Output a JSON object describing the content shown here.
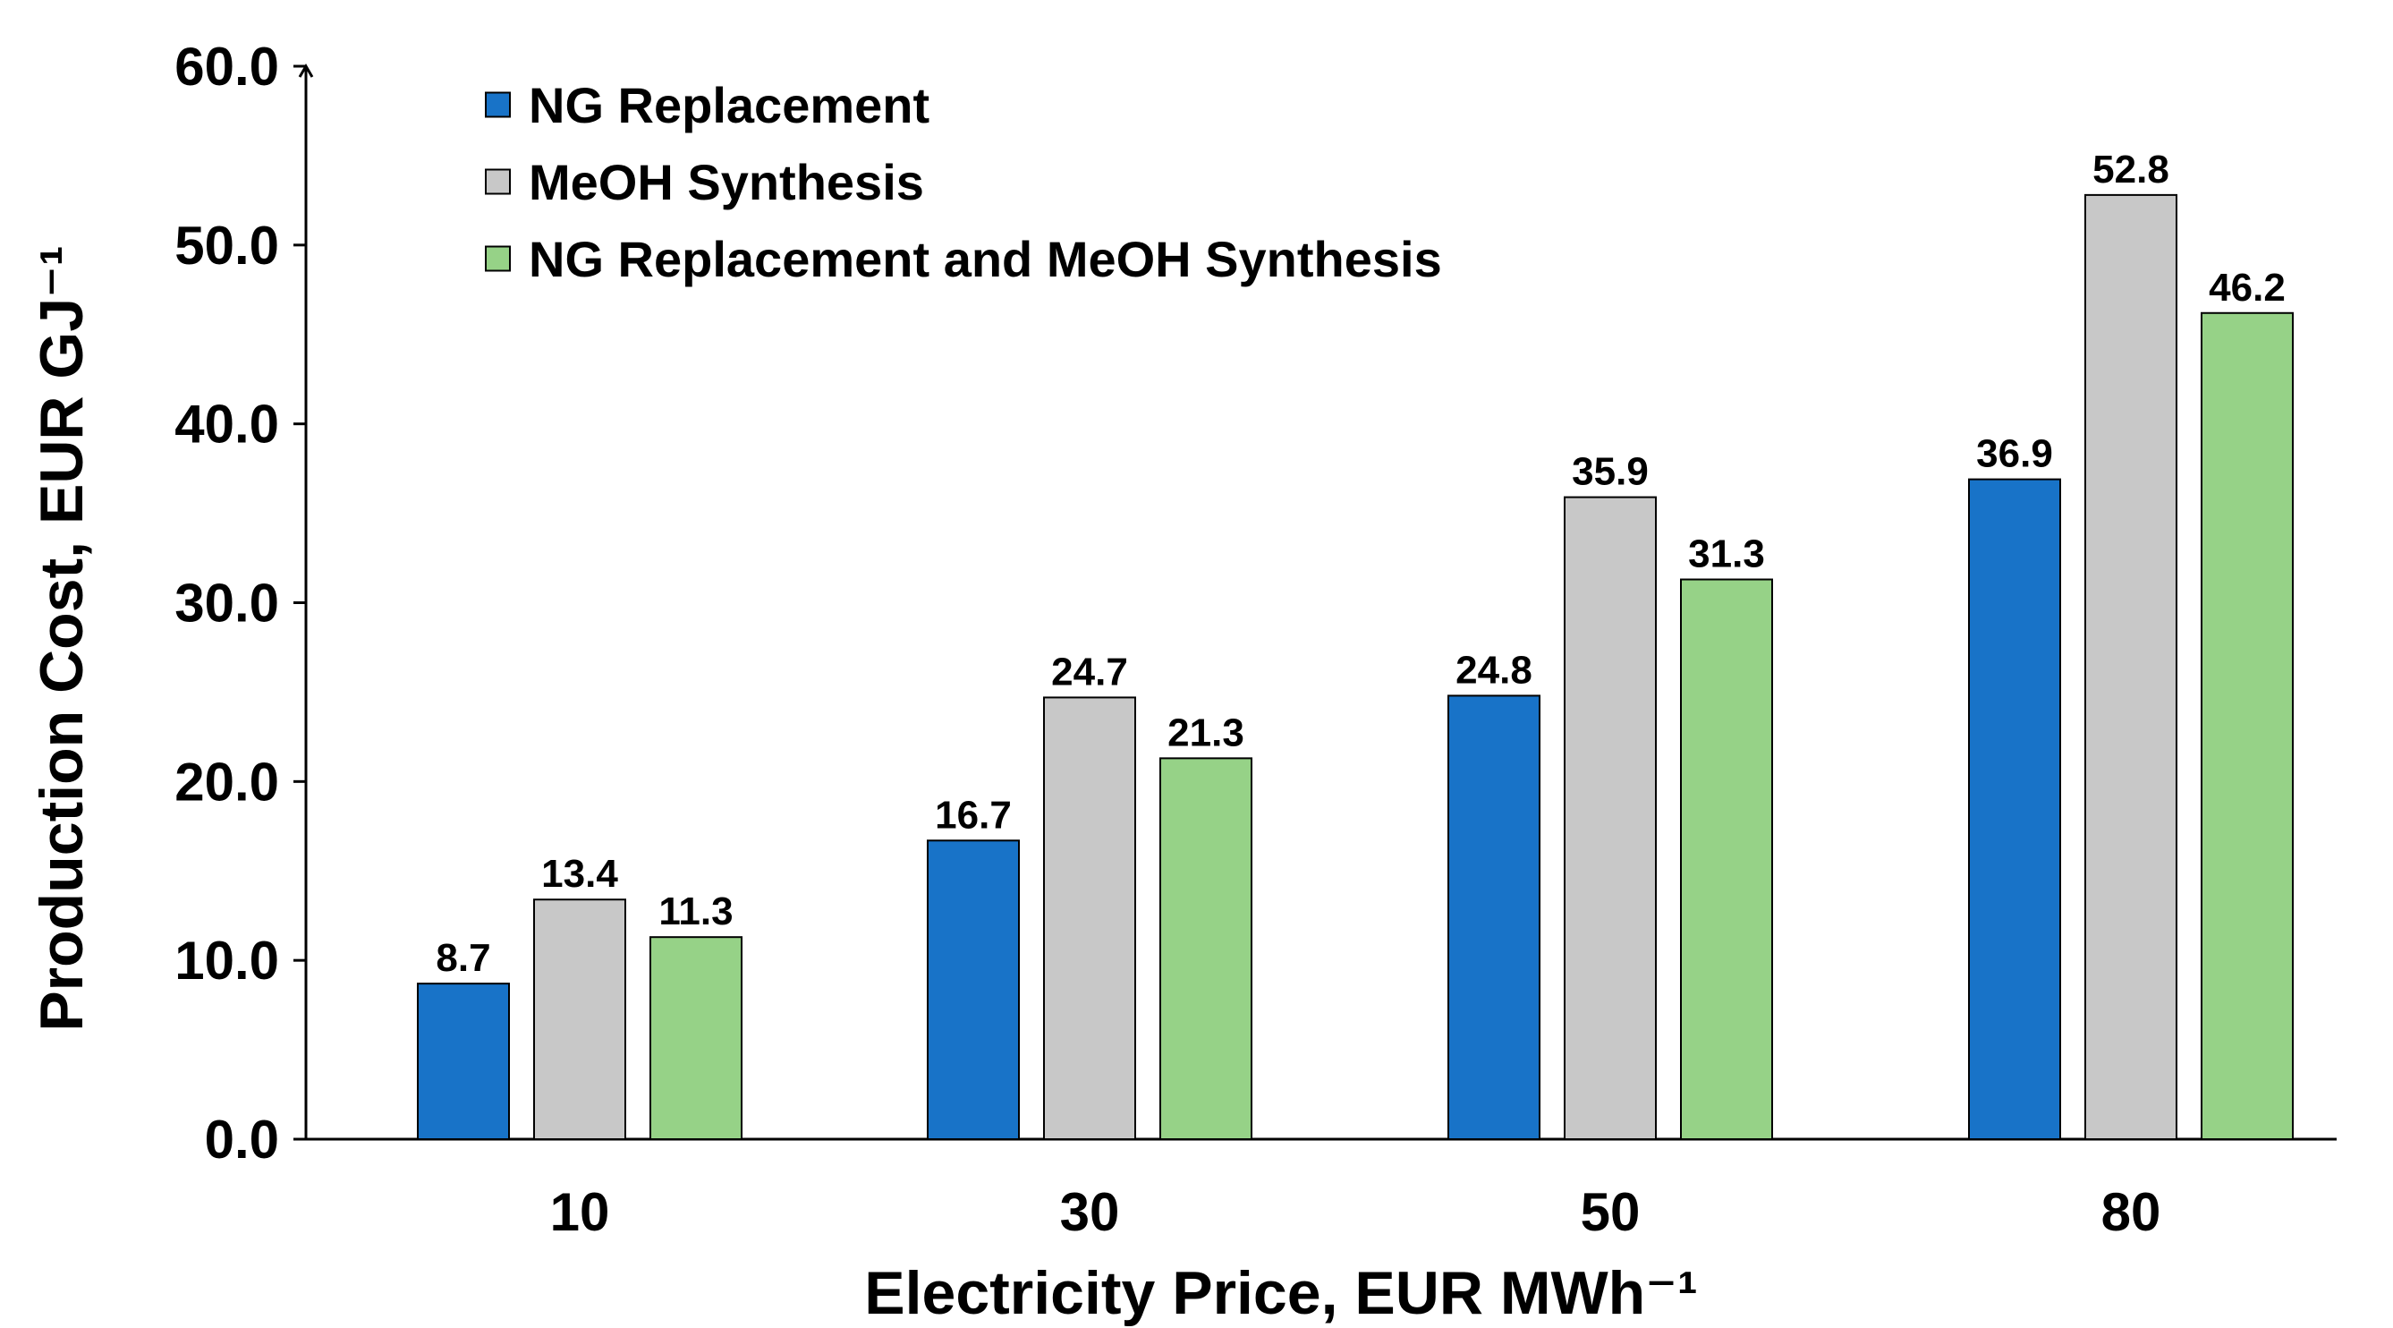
{
  "chart_data": {
    "type": "bar",
    "title": "",
    "xlabel": "Electricity Price, EUR MWh⁻¹",
    "ylabel": "Production Cost, EUR GJ⁻¹",
    "categories": [
      "10",
      "30",
      "50",
      "80"
    ],
    "ylim": [
      0,
      60
    ],
    "yticks": [
      "0.0",
      "10.0",
      "20.0",
      "30.0",
      "40.0",
      "50.0",
      "60.0"
    ],
    "ytick_values": [
      0,
      10,
      20,
      30,
      40,
      50,
      60
    ],
    "grid": false,
    "legend_position": "top-left",
    "series": [
      {
        "name": "NG Replacement",
        "color": "#1873C8",
        "values": [
          8.7,
          16.7,
          24.8,
          36.9
        ],
        "labels": [
          "8.7",
          "16.7",
          "24.8",
          "36.9"
        ]
      },
      {
        "name": "MeOH Synthesis",
        "color": "#C8C8C8",
        "values": [
          13.4,
          24.7,
          35.9,
          52.8
        ],
        "labels": [
          "13.4",
          "24.7",
          "35.9",
          "52.8"
        ]
      },
      {
        "name": "NG Replacement and MeOH Synthesis",
        "color": "#96D287",
        "values": [
          11.3,
          21.3,
          31.3,
          46.2
        ],
        "labels": [
          "11.3",
          "21.3",
          "31.3",
          "46.2"
        ]
      }
    ]
  }
}
